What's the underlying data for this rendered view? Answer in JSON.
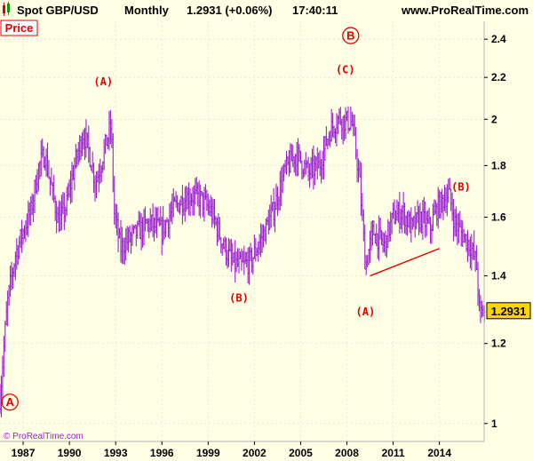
{
  "header": {
    "symbol": "Spot GBP/USD",
    "period": "Monthly",
    "last_change": "1.2931 (+0.06%)",
    "time": "17:40:11",
    "site": "www.ProRealTime.com",
    "icon": "candlestick-icon"
  },
  "panel_label": "Price",
  "watermark": "© ProRealTime.com",
  "price_badge": "1.2931",
  "colors": {
    "background": "#ffffe6",
    "series": "#9b1fd1",
    "annotation": "#e00000",
    "badge": "#ffd700",
    "grid": "#d9d9d9"
  },
  "chart_data": {
    "type": "ohlc",
    "title": "Spot GBP/USD Monthly",
    "y_scale": "log",
    "ylim": [
      0.96,
      2.5
    ],
    "xlim": [
      1985.5,
      2016.9
    ],
    "y_ticks": [
      "1",
      "1.2",
      "1.4",
      "1.6",
      "1.8",
      "2",
      "2.2",
      "2.4"
    ],
    "x_ticks": [
      "1987",
      "1990",
      "1993",
      "1996",
      "1999",
      "2002",
      "2005",
      "2008",
      "2011",
      "2014"
    ],
    "last_value": 1.2931,
    "series": [
      {
        "name": "GBP/USD",
        "x": [
          1985.5,
          1986.0,
          1986.5,
          1987.0,
          1987.5,
          1988.0,
          1988.4,
          1988.8,
          1989.3,
          1989.8,
          1990.3,
          1990.9,
          1991.3,
          1991.7,
          1992.2,
          1992.7,
          1992.9,
          1993.3,
          1993.8,
          1994.5,
          1995.2,
          1996.0,
          1996.6,
          1997.2,
          1997.8,
          1998.5,
          1999.2,
          2000.0,
          2000.6,
          2001.2,
          2001.8,
          2002.5,
          2003.2,
          2004.0,
          2004.7,
          2005.5,
          2006.2,
          2006.9,
          2007.5,
          2007.9,
          2008.3,
          2008.8,
          2009.2,
          2009.7,
          2010.4,
          2011.0,
          2011.6,
          2012.2,
          2012.8,
          2013.4,
          2013.8,
          2014.3,
          2014.6,
          2015.0,
          2015.6,
          2016.0,
          2016.4,
          2016.6,
          2016.9
        ],
        "close": [
          1.06,
          1.32,
          1.47,
          1.55,
          1.62,
          1.79,
          1.85,
          1.72,
          1.58,
          1.64,
          1.79,
          1.94,
          1.85,
          1.73,
          1.85,
          1.97,
          1.62,
          1.49,
          1.52,
          1.55,
          1.58,
          1.55,
          1.62,
          1.66,
          1.68,
          1.67,
          1.62,
          1.5,
          1.44,
          1.43,
          1.45,
          1.53,
          1.62,
          1.78,
          1.85,
          1.77,
          1.8,
          1.95,
          2.01,
          1.99,
          1.99,
          1.75,
          1.43,
          1.55,
          1.5,
          1.6,
          1.62,
          1.56,
          1.6,
          1.56,
          1.63,
          1.67,
          1.69,
          1.58,
          1.53,
          1.5,
          1.44,
          1.28,
          1.29
        ]
      }
    ],
    "annotations": [
      {
        "label": "(A)",
        "x": 1992.2,
        "y": 2.16,
        "color": "#e00000"
      },
      {
        "label": "(B)",
        "x": 2001.0,
        "y": 1.32,
        "color": "#e00000"
      },
      {
        "label": "(C)",
        "x": 2007.9,
        "y": 2.22,
        "color": "#e00000"
      },
      {
        "label": "(A)",
        "x": 2009.2,
        "y": 1.28,
        "color": "#e00000"
      },
      {
        "label": "(B)",
        "x": 2015.4,
        "y": 1.7,
        "color": "#e00000"
      }
    ],
    "circled_labels": [
      {
        "label": "A",
        "x": 1985.8,
        "y": 1.05
      },
      {
        "label": "B",
        "x": 2007.9,
        "y": 2.42
      }
    ],
    "trendline": {
      "x": [
        2009.5,
        2014.0
      ],
      "y": [
        1.4,
        1.49
      ]
    }
  }
}
